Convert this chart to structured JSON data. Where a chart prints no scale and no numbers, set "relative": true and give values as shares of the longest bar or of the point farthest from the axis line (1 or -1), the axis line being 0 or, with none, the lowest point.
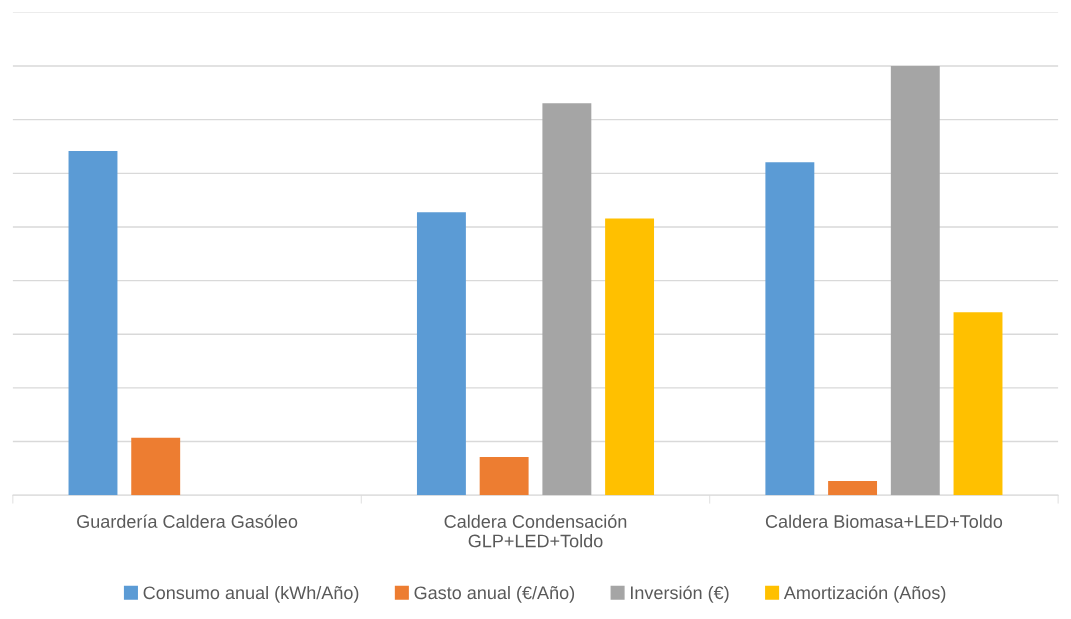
{
  "chart_data": {
    "type": "bar",
    "relative": true,
    "grid": "y",
    "legend": "bottom",
    "categories": [
      "Guardería Caldera Gasóleo",
      "Caldera Condensación\nGLP+LED+Toldo",
      "Caldera Biomasa+LED+Toldo"
    ],
    "series": [
      {
        "name": "Consumo anual (kWh/Año)",
        "color": "#5b9bd5",
        "values": [
          0.802,
          0.659,
          0.776
        ]
      },
      {
        "name": "Gasto anual (€/Año)",
        "color": "#ed7d31",
        "values": [
          0.134,
          0.089,
          0.033
        ]
      },
      {
        "name": "Inversión (€)",
        "color": "#a5a5a5",
        "values": [
          null,
          0.913,
          1
        ]
      },
      {
        "name": "Amortización (Años)",
        "color": "#ffc000",
        "values": [
          null,
          0.645,
          0.426
        ]
      }
    ]
  }
}
